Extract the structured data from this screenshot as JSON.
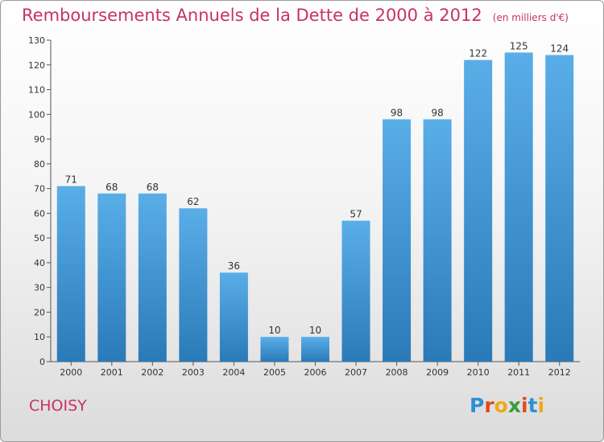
{
  "header": {
    "title": "Remboursements Annuels de la Dette de 2000 à 2012",
    "subtitle": "(en milliers d'€)"
  },
  "footer": {
    "commune": "CHOISY",
    "logo": "Proxiti"
  },
  "colors": {
    "title": "#c8316b",
    "bar_top": "#5aaee8",
    "bar_bottom": "#2a7ab8",
    "logo_letters": [
      "#2e8fd6",
      "#e4491c",
      "#f0a818",
      "#3a9d3a",
      "#e4491c",
      "#2e8fd6",
      "#f0a818"
    ]
  },
  "chart_data": {
    "type": "bar",
    "categories": [
      "2000",
      "2001",
      "2002",
      "2003",
      "2004",
      "2005",
      "2006",
      "2007",
      "2008",
      "2009",
      "2010",
      "2011",
      "2012"
    ],
    "values": [
      71,
      68,
      68,
      62,
      36,
      10,
      10,
      57,
      98,
      98,
      122,
      125,
      124
    ],
    "title": "Remboursements Annuels de la Dette de 2000 à 2012",
    "subtitle": "(en milliers d'€)",
    "ylim": [
      0,
      130
    ],
    "yticks": [
      0,
      10,
      20,
      30,
      40,
      50,
      60,
      70,
      80,
      90,
      100,
      110,
      120,
      130
    ],
    "grid": false,
    "data_labels": true
  }
}
